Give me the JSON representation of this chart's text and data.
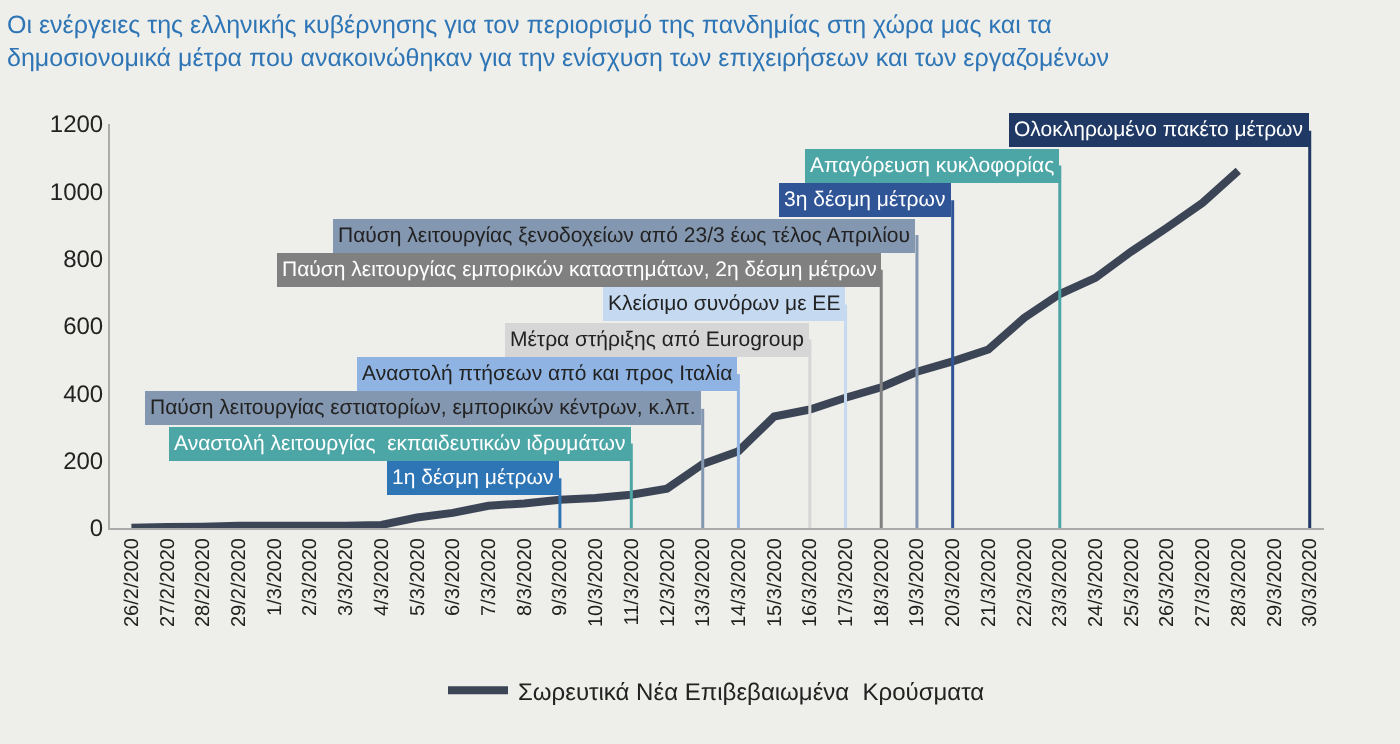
{
  "chart_data": {
    "type": "line",
    "title": "Οι ενέργειες της ελληνικής κυβέρνησης για τον περιορισμό της πανδημίας στη χώρα μας και τα δημοσιονομικά μέτρα που ανακοινώθηκαν για την ενίσχυση των επιχειρήσεων και των εργαζομένων",
    "categories": [
      "26/2/2020",
      "27/2/2020",
      "28/2/2020",
      "29/2/2020",
      "1/3/2020",
      "2/3/2020",
      "3/3/2020",
      "4/3/2020",
      "5/3/2020",
      "6/3/2020",
      "7/3/2020",
      "8/3/2020",
      "9/3/2020",
      "10/3/2020",
      "11/3/2020",
      "12/3/2020",
      "13/3/2020",
      "14/3/2020",
      "15/3/2020",
      "16/3/2020",
      "17/3/2020",
      "18/3/2020",
      "19/3/2020",
      "20/3/2020",
      "21/3/2020",
      "22/3/2020",
      "23/3/2020",
      "24/3/2020",
      "25/3/2020",
      "26/3/2020",
      "27/3/2020",
      "28/3/2020",
      "29/3/2020",
      "30/3/2020"
    ],
    "series": [
      {
        "name": "Σωρευτικά Νέα Επιβεβαιωμένα  Κρούσματα",
        "color": "#3b4556",
        "values": [
          1,
          3,
          4,
          7,
          7,
          7,
          7,
          9,
          31,
          45,
          66,
          73,
          84,
          89,
          99,
          117,
          190,
          228,
          331,
          352,
          387,
          418,
          464,
          495,
          530,
          624,
          695,
          743,
          821,
          892,
          966,
          1061,
          null,
          null
        ]
      }
    ],
    "ylim": [
      0,
      1200
    ],
    "yticks": [
      0,
      200,
      400,
      600,
      800,
      1000,
      1200
    ],
    "grid": false,
    "legend": "bottom",
    "marker": "none",
    "line_style": "solid",
    "ref_lines": [
      {
        "axis": "x",
        "value": "9/3/2020",
        "label": "1η δέσμη μέτρων",
        "color": "#2e75b6"
      },
      {
        "axis": "x",
        "value": "11/3/2020",
        "label": "Αναστολή λειτουργίας  εκπαιδευτικών ιδρυμάτων",
        "color": "#4da6a6"
      },
      {
        "axis": "x",
        "value": "13/3/2020",
        "label": "Παύση λειτουργίας εστιατορίων, εμπορικών κέντρων, κ.λπ.",
        "color": "#8497b0"
      },
      {
        "axis": "x",
        "value": "14/3/2020",
        "label": "Αναστολή πτήσεων από και προς Ιταλία",
        "color": "#8fb4e3"
      },
      {
        "axis": "x",
        "value": "16/3/2020",
        "label": "Μέτρα στήριξης από Eurogroup",
        "color": "#d6d6d6"
      },
      {
        "axis": "x",
        "value": "17/3/2020",
        "label": "Κλείσιμο συνόρων με ΕΕ",
        "color": "#c5d9f1"
      },
      {
        "axis": "x",
        "value": "18/3/2020",
        "label": "Παύση λειτουργίας εμπορικών καταστημάτων, 2η δέσμη μέτρων",
        "color": "#808080"
      },
      {
        "axis": "x",
        "value": "19/3/2020",
        "label": "Παύση λειτουργίας ξενοδοχείων από 23/3 έως τέλος Απριλίου",
        "color": "#8497b0"
      },
      {
        "axis": "x",
        "value": "20/3/2020",
        "label": "3η δέσμη μέτρων",
        "color": "#2f5597"
      },
      {
        "axis": "x",
        "value": "23/3/2020",
        "label": "Απαγόρευση κυκλοφορίας",
        "color": "#4da6a6"
      },
      {
        "axis": "x",
        "value": "30/3/2020",
        "label": "Ολοκληρωμένο πακέτο μέτρων",
        "color": "#1f3864"
      }
    ]
  }
}
